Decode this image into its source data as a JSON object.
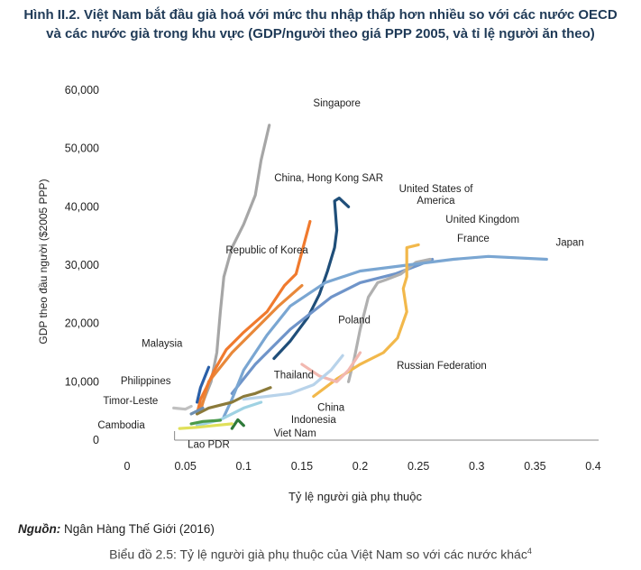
{
  "title_line1": "Hình II.2. Việt Nam bắt đầu già hoá với mức thu nhập thấp hơn nhiều so với các nước OECD",
  "title_line2": "và các nước già trong khu vực (GDP/người theo giá PPP 2005, và tỉ lệ người ăn theo)",
  "source_label": "Nguồn:",
  "source_text": " Ngân Hàng Thế Giới (2016)",
  "caption_text": "Biểu đồ 2.5: Tỷ lệ người già phụ thuộc của Việt Nam so với các nước khác",
  "caption_sup": "4",
  "chart_data": {
    "type": "line",
    "xlabel": "Tỷ lệ người già phụ thuộc",
    "ylabel": "GDP theo đầu người ($2005 PPP)",
    "xlim": [
      0,
      0.4
    ],
    "ylim": [
      0,
      60000
    ],
    "xticks": [
      "0",
      "0.05",
      "0.1",
      "0.15",
      "0.2",
      "0.25",
      "0.3",
      "0.35",
      "0.4"
    ],
    "xtick_values": [
      0,
      0.05,
      0.1,
      0.15,
      0.2,
      0.25,
      0.3,
      0.35,
      0.4
    ],
    "yticks": [
      "0",
      "10,000",
      "20,000",
      "30,000",
      "40,000",
      "50,000",
      "60,000"
    ],
    "ytick_values": [
      0,
      10000,
      20000,
      30000,
      40000,
      50000,
      60000
    ],
    "grid": false,
    "legend": "direct labels",
    "series": [
      {
        "name": "Singapore",
        "color": "#a6a6a6",
        "label_at": [
          0.18,
          57200
        ],
        "x": [
          0.062,
          0.072,
          0.077,
          0.08,
          0.083,
          0.09,
          0.1,
          0.11,
          0.115,
          0.122
        ],
        "y": [
          5000,
          10000,
          15000,
          22000,
          28000,
          33000,
          37000,
          42000,
          48000,
          54000
        ]
      },
      {
        "name": "China, Hong Kong SAR",
        "color": "#1f4e79",
        "label_at": [
          0.173,
          44400
        ],
        "x": [
          0.126,
          0.14,
          0.155,
          0.165,
          0.172,
          0.178,
          0.18,
          0.178,
          0.182,
          0.19
        ],
        "y": [
          14000,
          17000,
          21000,
          25000,
          29000,
          33000,
          36000,
          41000,
          41500,
          40000
        ]
      },
      {
        "name": "United States of America",
        "color": "#e8883a",
        "label_at": [
          0.265,
          42500
        ],
        "x": [
          0.063,
          0.07,
          0.09,
          0.11,
          0.13,
          0.15
        ],
        "y": [
          5000,
          10000,
          15000,
          19000,
          23000,
          26500
        ]
      },
      {
        "name": "Republic of Korea",
        "color": "#f07a2e",
        "label_at": [
          0.12,
          32000
        ],
        "x": [
          0.06,
          0.063,
          0.068,
          0.075,
          0.085,
          0.1,
          0.12,
          0.135,
          0.145,
          0.157
        ],
        "y": [
          4500,
          7000,
          9000,
          12000,
          15500,
          18500,
          22000,
          26500,
          28500,
          37500
        ]
      },
      {
        "name": "United Kingdom",
        "color": "#6f94c9",
        "label_at": [
          0.305,
          37300
        ],
        "x": [
          0.09,
          0.11,
          0.14,
          0.175,
          0.2,
          0.23,
          0.25,
          0.262
        ],
        "y": [
          8000,
          13000,
          19000,
          24500,
          27000,
          28500,
          30000,
          31000
        ]
      },
      {
        "name": "France",
        "color": "#b0b0b0",
        "label_at": [
          0.297,
          34000
        ],
        "x": [
          0.19,
          0.195,
          0.2,
          0.207,
          0.215,
          0.222,
          0.235,
          0.248,
          0.26
        ],
        "y": [
          10000,
          14000,
          19000,
          24500,
          27000,
          27500,
          28500,
          30500,
          31000
        ]
      },
      {
        "name": "Japan",
        "color": "#7aa6d2",
        "label_at": [
          0.38,
          33300
        ],
        "x": [
          0.083,
          0.09,
          0.1,
          0.12,
          0.14,
          0.17,
          0.2,
          0.24,
          0.28,
          0.31,
          0.36
        ],
        "y": [
          4000,
          7000,
          12000,
          18000,
          23000,
          27000,
          29000,
          30000,
          31000,
          31500,
          31000
        ]
      },
      {
        "name": "Russian Federation",
        "color": "#f2b84b",
        "label_at": [
          0.27,
          12200
        ],
        "x": [
          0.16,
          0.18,
          0.2,
          0.22,
          0.232,
          0.24,
          0.237,
          0.24,
          0.24,
          0.25
        ],
        "y": [
          7500,
          10500,
          13000,
          15000,
          17500,
          22000,
          26000,
          28000,
          33000,
          33500
        ]
      },
      {
        "name": "Poland",
        "color": "#f2b8b0",
        "label_at": [
          0.195,
          20000
        ],
        "x": [
          0.15,
          0.165,
          0.18,
          0.19,
          0.2
        ],
        "y": [
          13000,
          11000,
          10000,
          12000,
          15000
        ]
      },
      {
        "name": "Thailand",
        "color": "#8b7a3a",
        "label_at": [
          0.143,
          10600
        ],
        "x": [
          0.06,
          0.07,
          0.08,
          0.09,
          0.1,
          0.11,
          0.123
        ],
        "y": [
          4500,
          5500,
          6000,
          6500,
          7500,
          8000,
          9000
        ]
      },
      {
        "name": "China",
        "color": "#b8d3ea",
        "label_at": [
          0.175,
          5000
        ],
        "x": [
          0.1,
          0.12,
          0.14,
          0.16,
          0.175,
          0.185
        ],
        "y": [
          7000,
          7500,
          8000,
          9500,
          12000,
          14500
        ]
      },
      {
        "name": "Indonesia",
        "color": "#2f7a3a",
        "label_at": [
          0.16,
          2900
        ],
        "x": [
          0.09,
          0.095,
          0.1
        ],
        "y": [
          2000,
          3500,
          2500
        ]
      },
      {
        "name": "Viet Nam",
        "color": "#9fd2e3",
        "label_at": [
          0.144,
          600
        ],
        "x": [
          0.06,
          0.07,
          0.08,
          0.09,
          0.1,
          0.115
        ],
        "y": [
          2500,
          3000,
          3500,
          4500,
          5500,
          6500
        ]
      },
      {
        "name": "Malaysia",
        "color": "#2a5fa8",
        "label_at": [
          0.03,
          16000
        ],
        "x": [
          0.06,
          0.063,
          0.067,
          0.07
        ],
        "y": [
          6500,
          9000,
          11000,
          12500
        ]
      },
      {
        "name": "Philippines",
        "color": "#6f8fb0",
        "label_at": [
          0.016,
          9600
        ],
        "x": [
          0.055,
          0.06,
          0.065
        ],
        "y": [
          4500,
          5000,
          5500
        ]
      },
      {
        "name": "Timor-Leste",
        "color": "#c0c0c0",
        "label_at": [
          0.003,
          6200
        ],
        "x": [
          0.04,
          0.05,
          0.055
        ],
        "y": [
          5500,
          5300,
          5800
        ]
      },
      {
        "name": "Cambodia",
        "color": "#e0e05a",
        "label_at": [
          -0.005,
          2000
        ],
        "x": [
          0.045,
          0.06,
          0.075,
          0.09
        ],
        "y": [
          2000,
          2200,
          2500,
          2800
        ]
      },
      {
        "name": "Lao PDR",
        "color": "#4a9a4a",
        "label_at": [
          0.07,
          -1300
        ],
        "x": [
          0.055,
          0.065,
          0.08
        ],
        "y": [
          2800,
          3200,
          3400
        ]
      }
    ]
  }
}
